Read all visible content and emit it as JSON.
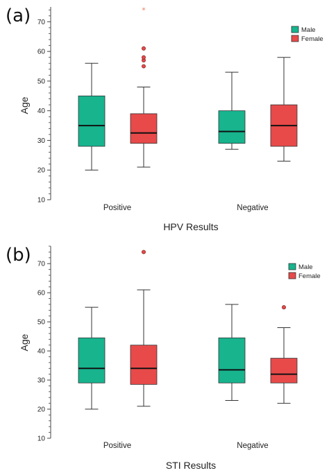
{
  "colors": {
    "male": "#17b48e",
    "female": "#e84a4a",
    "outlier_star": "#e9805f",
    "axis": "#444444"
  },
  "chart_data": [
    {
      "type": "box",
      "panel_label": "(a)",
      "xlabel": "HPV Results",
      "ylabel": "Age",
      "ylim": [
        10,
        75
      ],
      "yticks": [
        10,
        20,
        30,
        40,
        50,
        60,
        70
      ],
      "yticks_labels": [
        "10",
        "20",
        "30",
        "40",
        "50",
        "60",
        "70"
      ],
      "categories": [
        "Positive",
        "Negative"
      ],
      "legend": {
        "position": "top-right",
        "entries": [
          "Male",
          "Female"
        ]
      },
      "series": [
        {
          "name": "Male",
          "color": "#17b48e",
          "boxes": [
            {
              "min": 20,
              "q1": 28,
              "median": 35,
              "q3": 45,
              "max": 56,
              "outliers": [],
              "extremes": []
            },
            {
              "min": 27,
              "q1": 29,
              "median": 33,
              "q3": 40,
              "max": 53,
              "outliers": [],
              "extremes": []
            }
          ]
        },
        {
          "name": "Female",
          "color": "#e84a4a",
          "boxes": [
            {
              "min": 21,
              "q1": 29,
              "median": 32.5,
              "q3": 39,
              "max": 48,
              "outliers": [
                55,
                57,
                58,
                61
              ],
              "extremes": [
                74
              ]
            },
            {
              "min": 23,
              "q1": 28,
              "median": 35,
              "q3": 42,
              "max": 58,
              "outliers": [],
              "extremes": []
            }
          ]
        }
      ]
    },
    {
      "type": "box",
      "panel_label": "(b)",
      "xlabel": "STI Results",
      "ylabel": "Age",
      "ylim": [
        10,
        76
      ],
      "yticks": [
        10,
        20,
        30,
        40,
        50,
        60,
        70
      ],
      "yticks_labels": [
        "10",
        "20",
        "30",
        "40",
        "50",
        "60",
        "70"
      ],
      "categories": [
        "Positive",
        "Negative"
      ],
      "legend": {
        "position": "top-right",
        "entries": [
          "Male",
          "Female"
        ]
      },
      "series": [
        {
          "name": "Male",
          "color": "#17b48e",
          "boxes": [
            {
              "min": 20,
              "q1": 29,
              "median": 34,
              "q3": 44.5,
              "max": 55,
              "outliers": [],
              "extremes": []
            },
            {
              "min": 23,
              "q1": 29,
              "median": 33.5,
              "q3": 44.5,
              "max": 56,
              "outliers": [],
              "extremes": []
            }
          ]
        },
        {
          "name": "Female",
          "color": "#e84a4a",
          "boxes": [
            {
              "min": 21,
              "q1": 28.5,
              "median": 34,
              "q3": 42,
              "max": 61,
              "outliers": [
                74
              ],
              "extremes": []
            },
            {
              "min": 22,
              "q1": 29,
              "median": 32,
              "q3": 37.5,
              "max": 48,
              "outliers": [
                55
              ],
              "extremes": []
            }
          ]
        }
      ]
    }
  ]
}
